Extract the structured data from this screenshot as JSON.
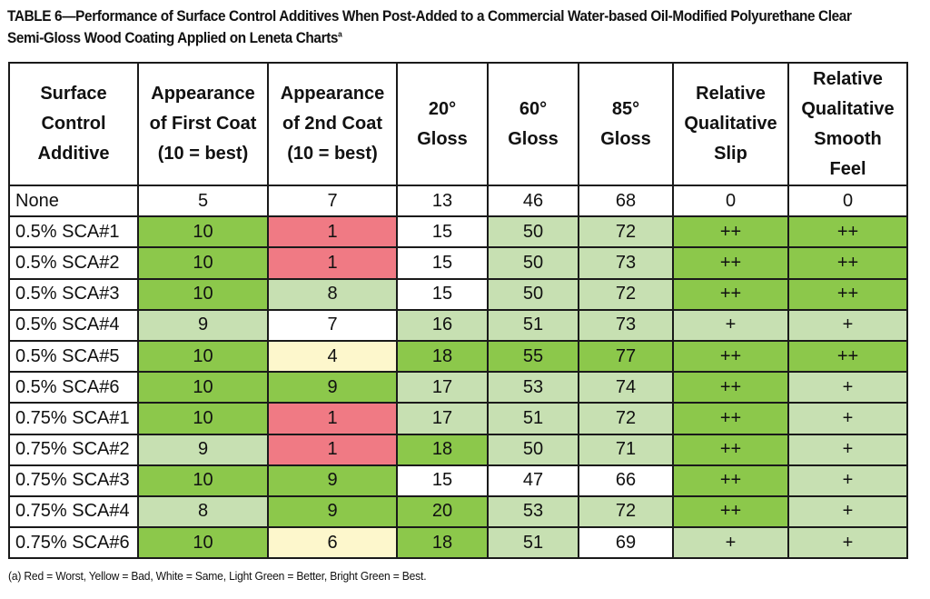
{
  "title": {
    "line1": "TABLE 6—Performance of Surface Control Additives When Post-Added to a Commercial Water-based Oil-Modified Polyurethane Clear",
    "line2": "Semi-Gloss Wood Coating Applied on Leneta Charts",
    "superscript": "a"
  },
  "headers": [
    [
      "Surface",
      "Control",
      "Additive"
    ],
    [
      "Appearance",
      "of First Coat",
      "(10 = best)"
    ],
    [
      "Appearance",
      "of 2nd Coat",
      "(10 = best)"
    ],
    [
      "20°",
      "Gloss"
    ],
    [
      "60°",
      "Gloss"
    ],
    [
      "85°",
      "Gloss"
    ],
    [
      "Relative",
      "Qualitative",
      "Slip"
    ],
    [
      "Relative",
      "Qualitative",
      "Smooth",
      "Feel"
    ]
  ],
  "legend_colors": {
    "worst_red": "#f07a84",
    "bad_yellow": "#fdf7cc",
    "same_white": "#ffffff",
    "better_light_green": "#c7e0b2",
    "best_bright_green": "#8cc84b"
  },
  "rows": [
    {
      "cells": [
        "None",
        "5",
        "7",
        "13",
        "46",
        "68",
        "0",
        "0"
      ],
      "colors": [
        "w",
        "w",
        "w",
        "w",
        "w",
        "w",
        "w",
        "w"
      ]
    },
    {
      "cells": [
        "0.5% SCA#1",
        "10",
        "1",
        "15",
        "50",
        "72",
        "++",
        "++"
      ],
      "colors": [
        "w",
        "g",
        "r",
        "w",
        "l",
        "l",
        "g",
        "g"
      ]
    },
    {
      "cells": [
        "0.5% SCA#2",
        "10",
        "1",
        "15",
        "50",
        "73",
        "++",
        "++"
      ],
      "colors": [
        "w",
        "g",
        "r",
        "w",
        "l",
        "l",
        "g",
        "g"
      ]
    },
    {
      "cells": [
        "0.5% SCA#3",
        "10",
        "8",
        "15",
        "50",
        "72",
        "++",
        "++"
      ],
      "colors": [
        "w",
        "g",
        "l",
        "w",
        "l",
        "l",
        "g",
        "g"
      ]
    },
    {
      "cells": [
        "0.5% SCA#4",
        "9",
        "7",
        "16",
        "51",
        "73",
        "+",
        "+"
      ],
      "colors": [
        "w",
        "l",
        "w",
        "l",
        "l",
        "l",
        "l",
        "l"
      ]
    },
    {
      "cells": [
        "0.5% SCA#5",
        "10",
        "4",
        "18",
        "55",
        "77",
        "++",
        "++"
      ],
      "colors": [
        "w",
        "g",
        "y",
        "g",
        "g",
        "g",
        "g",
        "g"
      ]
    },
    {
      "cells": [
        "0.5% SCA#6",
        "10",
        "9",
        "17",
        "53",
        "74",
        "++",
        "+"
      ],
      "colors": [
        "w",
        "g",
        "g",
        "l",
        "l",
        "l",
        "g",
        "l"
      ]
    },
    {
      "cells": [
        "0.75% SCA#1",
        "10",
        "1",
        "17",
        "51",
        "72",
        "++",
        "+"
      ],
      "colors": [
        "w",
        "g",
        "r",
        "l",
        "l",
        "l",
        "g",
        "l"
      ]
    },
    {
      "cells": [
        "0.75% SCA#2",
        "9",
        "1",
        "18",
        "50",
        "71",
        "++",
        "+"
      ],
      "colors": [
        "w",
        "l",
        "r",
        "g",
        "l",
        "l",
        "g",
        "l"
      ]
    },
    {
      "cells": [
        "0.75% SCA#3",
        "10",
        "9",
        "15",
        "47",
        "66",
        "++",
        "+"
      ],
      "colors": [
        "w",
        "g",
        "g",
        "w",
        "w",
        "w",
        "g",
        "l"
      ]
    },
    {
      "cells": [
        "0.75% SCA#4",
        "8",
        "9",
        "20",
        "53",
        "72",
        "++",
        "+"
      ],
      "colors": [
        "w",
        "l",
        "g",
        "g",
        "l",
        "l",
        "g",
        "l"
      ]
    },
    {
      "cells": [
        "0.75% SCA#6",
        "10",
        "6",
        "18",
        "51",
        "69",
        "+",
        "+"
      ],
      "colors": [
        "w",
        "g",
        "y",
        "g",
        "l",
        "w",
        "l",
        "l"
      ]
    }
  ],
  "footnote": "(a) Red = Worst, Yellow = Bad, White = Same, Light Green = Better, Bright Green = Best."
}
